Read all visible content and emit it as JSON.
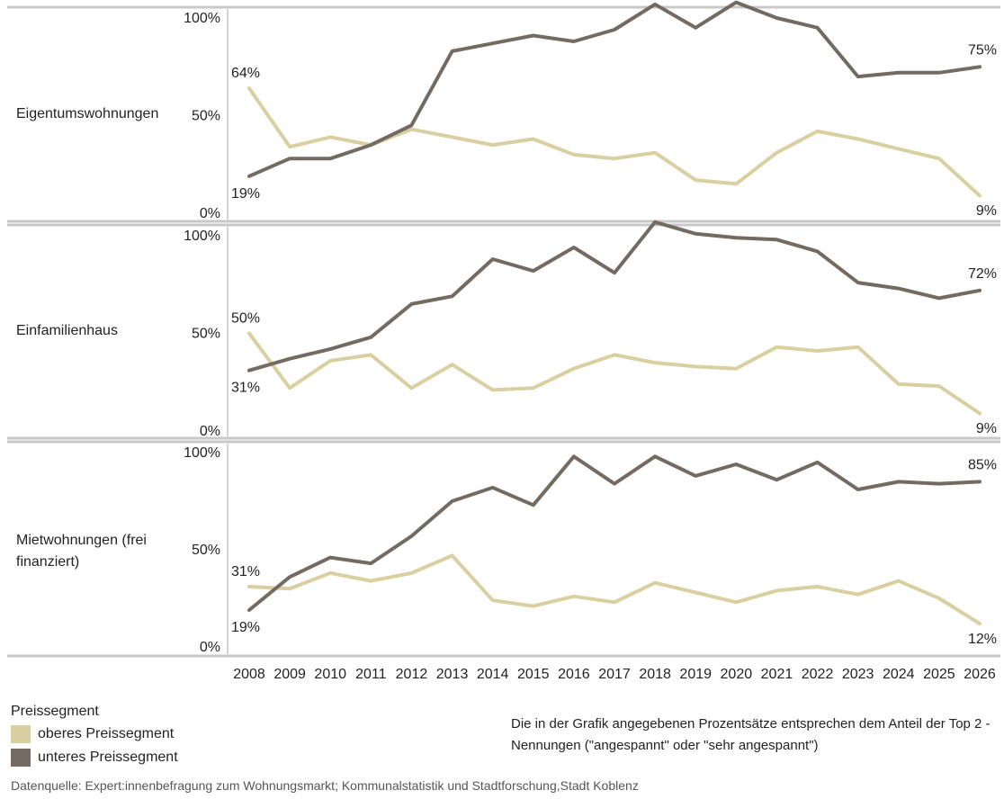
{
  "chart_data": {
    "type": "line",
    "years": [
      "2008",
      "2009",
      "2010",
      "2011",
      "2012",
      "2013",
      "2014",
      "2015",
      "2016",
      "2017",
      "2018",
      "2019",
      "2020",
      "2021",
      "2022",
      "2023",
      "2024",
      "2025",
      "2026"
    ],
    "ylim": [
      0,
      100
    ],
    "yticks": [
      "0%",
      "50%",
      "100%"
    ],
    "grid": false,
    "legend_position": "bottom-left",
    "colors": {
      "oberes": "#d9cfa0",
      "unteres": "#736a62",
      "axis": "#c8c8c8"
    },
    "panels": [
      {
        "label": "Eigentumswohnungen",
        "series": [
          {
            "name": "oberes Preissegment",
            "values": [
              64,
              34,
              39,
              35,
              43,
              39,
              35,
              38,
              30,
              28,
              31,
              17,
              15,
              31,
              42,
              38,
              33,
              28,
              9
            ]
          },
          {
            "name": "unteres Preissegment",
            "values": [
              19,
              28,
              28,
              35,
              45,
              83,
              87,
              91,
              88,
              94,
              107,
              95,
              108,
              100,
              95,
              70,
              72,
              72,
              75
            ]
          }
        ],
        "annotations": {
          "start_oberes": "64%",
          "start_unteres": "19%",
          "end_unteres": "75%",
          "end_oberes": "9%"
        }
      },
      {
        "label": "Einfamilienhaus",
        "series": [
          {
            "name": "oberes Preissegment",
            "values": [
              50,
              22,
              36,
              39,
              22,
              34,
              21,
              22,
              32,
              39,
              35,
              33,
              32,
              43,
              41,
              43,
              24,
              23,
              9
            ]
          },
          {
            "name": "unteres Preissegment",
            "values": [
              31,
              37,
              42,
              48,
              65,
              69,
              88,
              82,
              94,
              81,
              107,
              101,
              99,
              98,
              92,
              76,
              73,
              68,
              72
            ]
          }
        ],
        "annotations": {
          "start_oberes": "50%",
          "start_unteres": "31%",
          "end_unteres": "72%",
          "end_oberes": "9%"
        }
      },
      {
        "label": "Mietwohnungen (frei finanziert)",
        "series": [
          {
            "name": "oberes Preissegment",
            "values": [
              31,
              30,
              38,
              34,
              38,
              47,
              24,
              21,
              26,
              23,
              33,
              28,
              23,
              29,
              31,
              27,
              34,
              25,
              12
            ]
          },
          {
            "name": "unteres Preissegment",
            "values": [
              19,
              36,
              46,
              43,
              57,
              75,
              82,
              73,
              98,
              84,
              98,
              88,
              94,
              86,
              95,
              81,
              85,
              84,
              85
            ]
          }
        ],
        "annotations": {
          "start_oberes": "31%",
          "start_unteres": "19%",
          "end_unteres": "85%",
          "end_oberes": "12%"
        }
      }
    ]
  },
  "legend": {
    "title": "Preissegment",
    "items": [
      {
        "label": "oberes Preissegment",
        "color": "#d9cfa0"
      },
      {
        "label": "unteres Preissegment",
        "color": "#736a62"
      }
    ]
  },
  "note": "Die in der Grafik angegebenen Prozentsätze entsprechen dem Anteil der Top 2 - Nennungen (\"angespannt\" oder \"sehr angespannt\")",
  "source": "Datenquelle: Expert:innenbefragung zum Wohnungsmarkt; Kommunalstatistik und Stadtforschung,Stadt Koblenz"
}
